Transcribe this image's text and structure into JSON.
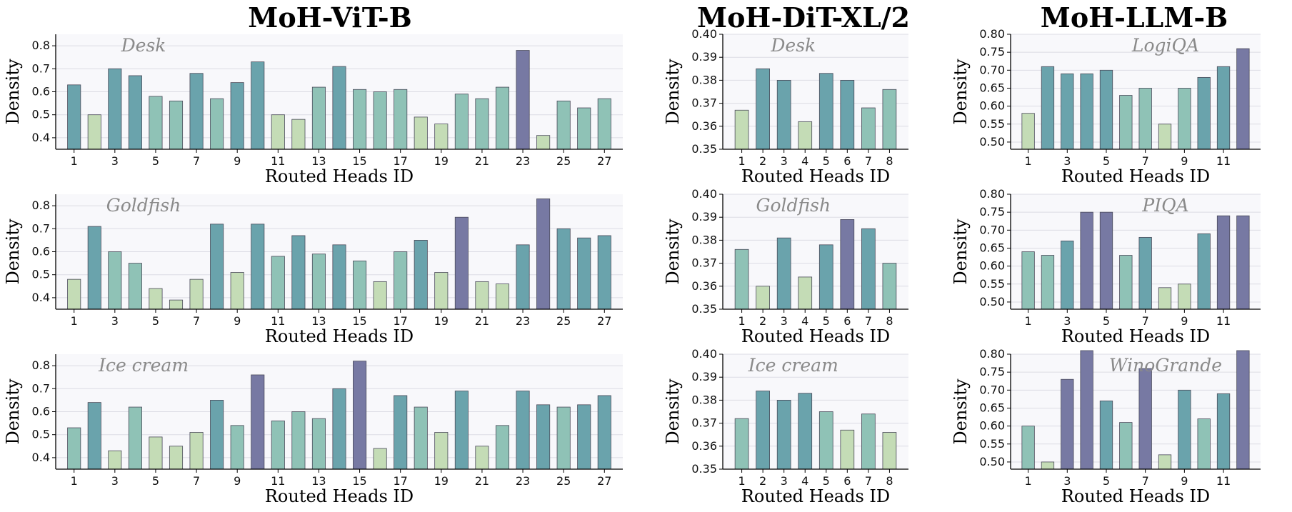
{
  "column_titles": [
    "MoH-ViT-B",
    "MoH-DiT-XL/2",
    "MoH-LLM-B"
  ],
  "chart_data": [
    {
      "type": "bar",
      "column": 0,
      "row": 0,
      "annotation": "Desk",
      "xlabel": "Routed Heads ID",
      "ylabel": "Density",
      "ylim": [
        0.35,
        0.85
      ],
      "yticks": [
        0.4,
        0.5,
        0.6,
        0.7,
        0.8
      ],
      "ytick_labels": [
        "0.4",
        "0.5",
        "0.6",
        "0.7",
        "0.8"
      ],
      "grid": true,
      "categories": [
        1,
        2,
        3,
        4,
        5,
        6,
        7,
        8,
        9,
        10,
        11,
        12,
        13,
        14,
        15,
        16,
        17,
        18,
        19,
        20,
        21,
        22,
        23,
        24,
        25,
        26,
        27
      ],
      "xtick_labels": [
        "1",
        "3",
        "5",
        "7",
        "9",
        "11",
        "13",
        "15",
        "17",
        "19",
        "21",
        "23",
        "25",
        "27"
      ],
      "values": [
        0.63,
        0.5,
        0.7,
        0.67,
        0.58,
        0.56,
        0.68,
        0.57,
        0.64,
        0.73,
        0.5,
        0.48,
        0.62,
        0.71,
        0.61,
        0.6,
        0.61,
        0.49,
        0.46,
        0.59,
        0.57,
        0.62,
        0.78,
        0.41,
        0.56,
        0.53,
        0.57
      ]
    },
    {
      "type": "bar",
      "column": 0,
      "row": 1,
      "annotation": "Goldfish",
      "xlabel": "Routed Heads ID",
      "ylabel": "Density",
      "ylim": [
        0.35,
        0.85
      ],
      "yticks": [
        0.4,
        0.5,
        0.6,
        0.7,
        0.8
      ],
      "ytick_labels": [
        "0.4",
        "0.5",
        "0.6",
        "0.7",
        "0.8"
      ],
      "grid": true,
      "categories": [
        1,
        2,
        3,
        4,
        5,
        6,
        7,
        8,
        9,
        10,
        11,
        12,
        13,
        14,
        15,
        16,
        17,
        18,
        19,
        20,
        21,
        22,
        23,
        24,
        25,
        26,
        27
      ],
      "xtick_labels": [
        "1",
        "3",
        "5",
        "7",
        "9",
        "11",
        "13",
        "15",
        "17",
        "19",
        "21",
        "23",
        "25",
        "27"
      ],
      "values": [
        0.48,
        0.71,
        0.6,
        0.55,
        0.44,
        0.39,
        0.48,
        0.72,
        0.51,
        0.72,
        0.58,
        0.67,
        0.59,
        0.63,
        0.56,
        0.47,
        0.6,
        0.65,
        0.51,
        0.75,
        0.47,
        0.46,
        0.63,
        0.83,
        0.7,
        0.66,
        0.67
      ]
    },
    {
      "type": "bar",
      "column": 0,
      "row": 2,
      "annotation": "Ice cream",
      "xlabel": "Routed Heads ID",
      "ylabel": "Density",
      "ylim": [
        0.35,
        0.85
      ],
      "yticks": [
        0.4,
        0.5,
        0.6,
        0.7,
        0.8
      ],
      "ytick_labels": [
        "0.4",
        "0.5",
        "0.6",
        "0.7",
        "0.8"
      ],
      "grid": true,
      "categories": [
        1,
        2,
        3,
        4,
        5,
        6,
        7,
        8,
        9,
        10,
        11,
        12,
        13,
        14,
        15,
        16,
        17,
        18,
        19,
        20,
        21,
        22,
        23,
        24,
        25,
        26,
        27
      ],
      "xtick_labels": [
        "1",
        "3",
        "5",
        "7",
        "9",
        "11",
        "13",
        "15",
        "17",
        "19",
        "21",
        "23",
        "25",
        "27"
      ],
      "values": [
        0.53,
        0.64,
        0.43,
        0.62,
        0.49,
        0.45,
        0.51,
        0.65,
        0.54,
        0.76,
        0.56,
        0.6,
        0.57,
        0.7,
        0.82,
        0.44,
        0.67,
        0.62,
        0.51,
        0.69,
        0.45,
        0.54,
        0.69,
        0.63,
        0.62,
        0.63,
        0.67
      ]
    },
    {
      "type": "bar",
      "column": 1,
      "row": 0,
      "annotation": "Desk",
      "xlabel": "Routed Heads ID",
      "ylabel": "Density",
      "ylim": [
        0.35,
        0.4
      ],
      "yticks": [
        0.35,
        0.36,
        0.37,
        0.38,
        0.39,
        0.4
      ],
      "ytick_labels": [
        "0.35",
        "0.36",
        "0.37",
        "0.38",
        "0.39",
        "0.40"
      ],
      "grid": true,
      "categories": [
        1,
        2,
        3,
        4,
        5,
        6,
        7,
        8
      ],
      "xtick_labels": [
        "1",
        "2",
        "3",
        "4",
        "5",
        "6",
        "7",
        "8"
      ],
      "values": [
        0.367,
        0.385,
        0.38,
        0.362,
        0.383,
        0.38,
        0.368,
        0.376
      ]
    },
    {
      "type": "bar",
      "column": 1,
      "row": 1,
      "annotation": "Goldfish",
      "xlabel": "Routed Heads ID",
      "ylabel": "Density",
      "ylim": [
        0.35,
        0.4
      ],
      "yticks": [
        0.35,
        0.36,
        0.37,
        0.38,
        0.39,
        0.4
      ],
      "ytick_labels": [
        "0.35",
        "0.36",
        "0.37",
        "0.38",
        "0.39",
        "0.40"
      ],
      "grid": true,
      "categories": [
        1,
        2,
        3,
        4,
        5,
        6,
        7,
        8
      ],
      "xtick_labels": [
        "1",
        "2",
        "3",
        "4",
        "5",
        "6",
        "7",
        "8"
      ],
      "values": [
        0.376,
        0.36,
        0.381,
        0.364,
        0.378,
        0.389,
        0.385,
        0.37
      ]
    },
    {
      "type": "bar",
      "column": 1,
      "row": 2,
      "annotation": "Ice cream",
      "xlabel": "Routed Heads ID",
      "ylabel": "Density",
      "ylim": [
        0.35,
        0.4
      ],
      "yticks": [
        0.35,
        0.36,
        0.37,
        0.38,
        0.39,
        0.4
      ],
      "ytick_labels": [
        "0.35",
        "0.36",
        "0.37",
        "0.38",
        "0.39",
        "0.40"
      ],
      "grid": true,
      "categories": [
        1,
        2,
        3,
        4,
        5,
        6,
        7,
        8
      ],
      "xtick_labels": [
        "1",
        "2",
        "3",
        "4",
        "5",
        "6",
        "7",
        "8"
      ],
      "values": [
        0.372,
        0.384,
        0.38,
        0.383,
        0.375,
        0.367,
        0.374,
        0.366
      ]
    },
    {
      "type": "bar",
      "column": 2,
      "row": 0,
      "annotation": "LogiQA",
      "xlabel": "Routed Heads ID",
      "ylabel": "Density",
      "ylim": [
        0.48,
        0.8
      ],
      "yticks": [
        0.5,
        0.55,
        0.6,
        0.65,
        0.7,
        0.75,
        0.8
      ],
      "ytick_labels": [
        "0.50",
        "0.55",
        "0.60",
        "0.65",
        "0.70",
        "0.75",
        "0.80"
      ],
      "grid": true,
      "categories": [
        1,
        2,
        3,
        4,
        5,
        6,
        7,
        8,
        9,
        10,
        11,
        12
      ],
      "xtick_labels": [
        "1",
        "3",
        "5",
        "7",
        "9",
        "11"
      ],
      "values": [
        0.58,
        0.71,
        0.69,
        0.69,
        0.7,
        0.63,
        0.65,
        0.55,
        0.65,
        0.68,
        0.71,
        0.76
      ]
    },
    {
      "type": "bar",
      "column": 2,
      "row": 1,
      "annotation": "PIQA",
      "xlabel": "Routed Heads ID",
      "ylabel": "Density",
      "ylim": [
        0.48,
        0.8
      ],
      "yticks": [
        0.5,
        0.55,
        0.6,
        0.65,
        0.7,
        0.75,
        0.8
      ],
      "ytick_labels": [
        "0.50",
        "0.55",
        "0.60",
        "0.65",
        "0.70",
        "0.75",
        "0.80"
      ],
      "grid": true,
      "categories": [
        1,
        2,
        3,
        4,
        5,
        6,
        7,
        8,
        9,
        10,
        11,
        12
      ],
      "xtick_labels": [
        "1",
        "3",
        "5",
        "7",
        "9",
        "11"
      ],
      "values": [
        0.64,
        0.63,
        0.67,
        0.75,
        0.75,
        0.63,
        0.68,
        0.54,
        0.55,
        0.69,
        0.74,
        0.74
      ]
    },
    {
      "type": "bar",
      "column": 2,
      "row": 2,
      "annotation": "WinoGrande",
      "xlabel": "Routed Heads ID",
      "ylabel": "Density",
      "ylim": [
        0.48,
        0.8
      ],
      "yticks": [
        0.5,
        0.55,
        0.6,
        0.65,
        0.7,
        0.75,
        0.8
      ],
      "ytick_labels": [
        "0.50",
        "0.55",
        "0.60",
        "0.65",
        "0.70",
        "0.75",
        "0.80"
      ],
      "grid": true,
      "categories": [
        1,
        2,
        3,
        4,
        5,
        6,
        7,
        8,
        9,
        10,
        11,
        12
      ],
      "xtick_labels": [
        "1",
        "3",
        "5",
        "7",
        "9",
        "11"
      ],
      "values": [
        0.6,
        0.5,
        0.73,
        0.81,
        0.67,
        0.61,
        0.76,
        0.52,
        0.7,
        0.62,
        0.69,
        0.81
      ]
    }
  ],
  "colors": {
    "low": "#c4dcb6",
    "mid": "#8fc2b6",
    "high": "#6aa3ac",
    "top": "#7779a3",
    "plot_background": "#f8f8fb"
  }
}
